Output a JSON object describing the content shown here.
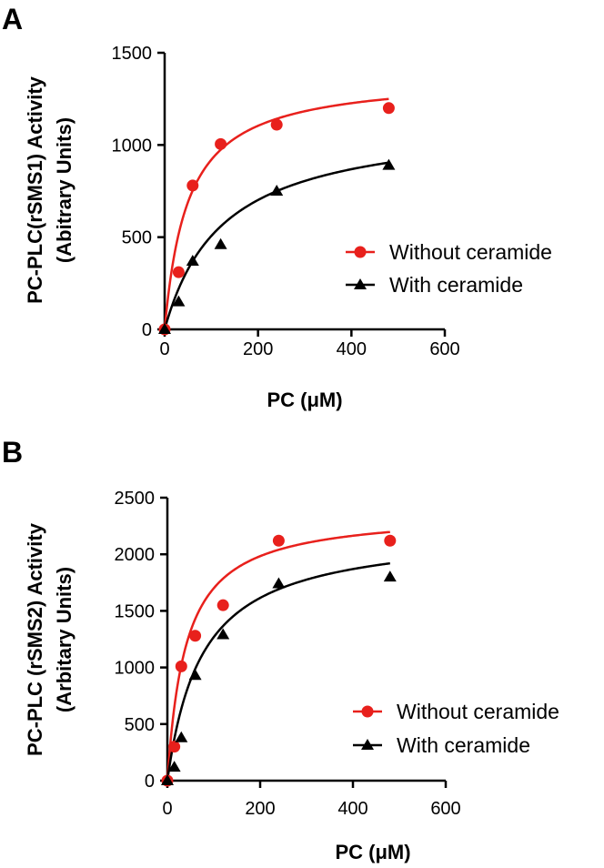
{
  "chart_data": [
    {
      "panel": "A",
      "type": "scatter",
      "xlabel": "PC (μM)",
      "ylabel_lines": [
        "PC-PLC(rSMS1) Activity",
        "(Abitrary Units)"
      ],
      "xlim": [
        0,
        600
      ],
      "ylim": [
        0,
        1500
      ],
      "xticks": [
        0,
        200,
        400,
        600
      ],
      "yticks": [
        0,
        500,
        1000,
        1500
      ],
      "legend_position": "right",
      "series": [
        {
          "name": "Without ceramide",
          "color": "#e8201c",
          "marker": "circle",
          "x": [
            0,
            30,
            60,
            120,
            240,
            480
          ],
          "y": [
            0,
            310,
            780,
            1005,
            1110,
            1200
          ],
          "fit": {
            "model": "michaelis-menten",
            "vmax": 1380,
            "km": 50
          }
        },
        {
          "name": "With ceramide",
          "color": "#000000",
          "marker": "triangle",
          "x": [
            0,
            30,
            60,
            120,
            240,
            480
          ],
          "y": [
            0,
            150,
            370,
            460,
            750,
            890
          ],
          "fit": {
            "model": "michaelis-menten",
            "vmax": 1140,
            "km": 125
          }
        }
      ]
    },
    {
      "panel": "B",
      "type": "scatter",
      "xlabel": "PC (μM)",
      "ylabel_lines": [
        "PC-PLC (rSMS2) Activity",
        "(Arbitary Units)"
      ],
      "xlim": [
        0,
        600
      ],
      "ylim": [
        0,
        2500
      ],
      "xticks": [
        0,
        200,
        400,
        600
      ],
      "yticks": [
        0,
        500,
        1000,
        1500,
        2000,
        2500
      ],
      "legend_position": "bottom-right",
      "series": [
        {
          "name": "Without ceramide",
          "color": "#e8201c",
          "marker": "circle",
          "x": [
            0,
            15,
            30,
            60,
            120,
            240,
            480
          ],
          "y": [
            0,
            300,
            1010,
            1280,
            1550,
            2120,
            2120
          ],
          "fit": {
            "model": "michaelis-menten",
            "vmax": 2380,
            "km": 40
          }
        },
        {
          "name": "With ceramide",
          "color": "#000000",
          "marker": "triangle",
          "x": [
            0,
            15,
            30,
            60,
            120,
            240,
            480
          ],
          "y": [
            0,
            120,
            380,
            930,
            1290,
            1740,
            1800
          ],
          "fit": {
            "model": "michaelis-menten",
            "vmax": 2220,
            "km": 75
          }
        }
      ]
    }
  ]
}
